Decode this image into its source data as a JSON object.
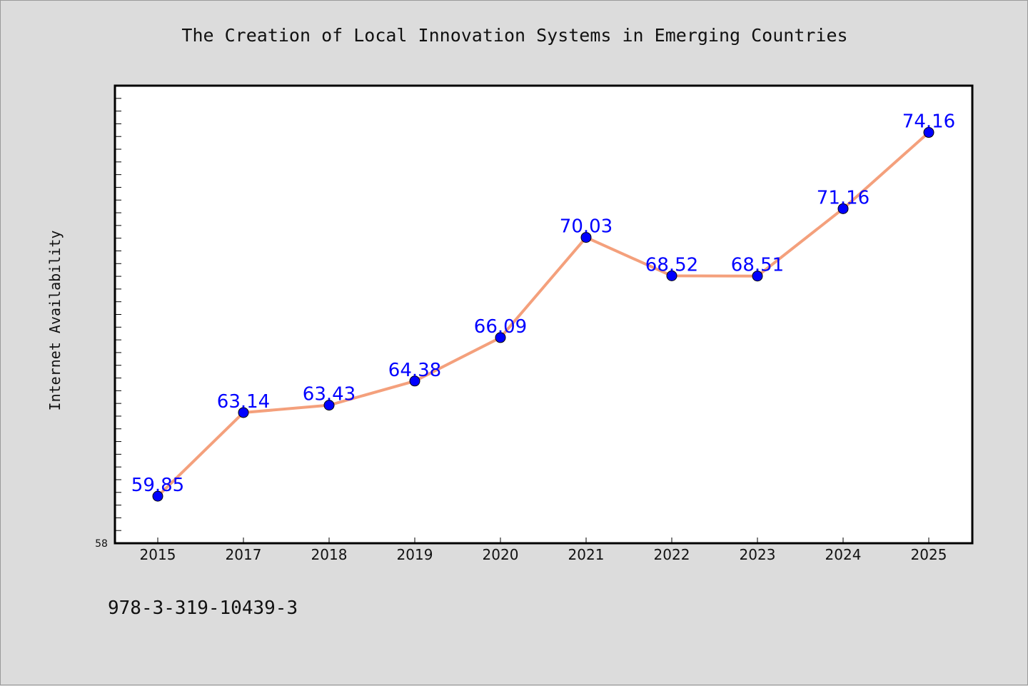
{
  "chart_data": {
    "type": "line",
    "title": "The Creation of Local Innovation Systems in Emerging Countries",
    "xlabel": "",
    "ylabel": "Internet Availability",
    "categories": [
      "2015",
      "2017",
      "2018",
      "2019",
      "2020",
      "2021",
      "2022",
      "2023",
      "2024",
      "2025"
    ],
    "series": [
      {
        "values": [
          59.85,
          63.14,
          63.43,
          64.38,
          66.09,
          70.03,
          68.52,
          68.51,
          71.16,
          74.16
        ],
        "labels": [
          "59.85",
          "63.14",
          "63.43",
          "64.38",
          "66.09",
          "70.03",
          "68.52",
          "68.51",
          "71.16",
          "74.16"
        ],
        "line_color": "#f4a07c",
        "marker_color": "#0000ff"
      }
    ],
    "ylim": [
      58,
      76
    ],
    "y_min_label": "58",
    "grid": false,
    "background": "#ffffff",
    "figure_background": "#dcdcdc"
  },
  "footer_text": "978-3-319-10439-3"
}
